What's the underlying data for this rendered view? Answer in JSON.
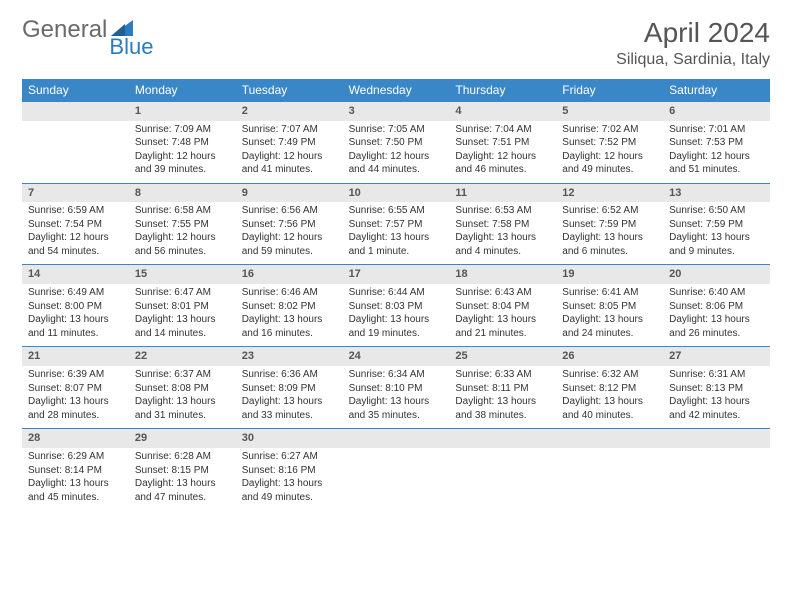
{
  "brand": {
    "part1": "General",
    "part2": "Blue"
  },
  "title": {
    "month": "April 2024",
    "location": "Siliqua, Sardinia, Italy"
  },
  "colors": {
    "header_bg": "#3a87c8",
    "header_text": "#ffffff",
    "date_bg": "#e8e8e8",
    "rule": "#3a87c8",
    "text": "#333333",
    "logo_gray": "#6a6a6a",
    "logo_blue": "#2a7bbf"
  },
  "weekdays": [
    "Sunday",
    "Monday",
    "Tuesday",
    "Wednesday",
    "Thursday",
    "Friday",
    "Saturday"
  ],
  "weeks": [
    [
      null,
      {
        "n": "1",
        "sr": "Sunrise: 7:09 AM",
        "ss": "Sunset: 7:48 PM",
        "d1": "Daylight: 12 hours",
        "d2": "and 39 minutes."
      },
      {
        "n": "2",
        "sr": "Sunrise: 7:07 AM",
        "ss": "Sunset: 7:49 PM",
        "d1": "Daylight: 12 hours",
        "d2": "and 41 minutes."
      },
      {
        "n": "3",
        "sr": "Sunrise: 7:05 AM",
        "ss": "Sunset: 7:50 PM",
        "d1": "Daylight: 12 hours",
        "d2": "and 44 minutes."
      },
      {
        "n": "4",
        "sr": "Sunrise: 7:04 AM",
        "ss": "Sunset: 7:51 PM",
        "d1": "Daylight: 12 hours",
        "d2": "and 46 minutes."
      },
      {
        "n": "5",
        "sr": "Sunrise: 7:02 AM",
        "ss": "Sunset: 7:52 PM",
        "d1": "Daylight: 12 hours",
        "d2": "and 49 minutes."
      },
      {
        "n": "6",
        "sr": "Sunrise: 7:01 AM",
        "ss": "Sunset: 7:53 PM",
        "d1": "Daylight: 12 hours",
        "d2": "and 51 minutes."
      }
    ],
    [
      {
        "n": "7",
        "sr": "Sunrise: 6:59 AM",
        "ss": "Sunset: 7:54 PM",
        "d1": "Daylight: 12 hours",
        "d2": "and 54 minutes."
      },
      {
        "n": "8",
        "sr": "Sunrise: 6:58 AM",
        "ss": "Sunset: 7:55 PM",
        "d1": "Daylight: 12 hours",
        "d2": "and 56 minutes."
      },
      {
        "n": "9",
        "sr": "Sunrise: 6:56 AM",
        "ss": "Sunset: 7:56 PM",
        "d1": "Daylight: 12 hours",
        "d2": "and 59 minutes."
      },
      {
        "n": "10",
        "sr": "Sunrise: 6:55 AM",
        "ss": "Sunset: 7:57 PM",
        "d1": "Daylight: 13 hours",
        "d2": "and 1 minute."
      },
      {
        "n": "11",
        "sr": "Sunrise: 6:53 AM",
        "ss": "Sunset: 7:58 PM",
        "d1": "Daylight: 13 hours",
        "d2": "and 4 minutes."
      },
      {
        "n": "12",
        "sr": "Sunrise: 6:52 AM",
        "ss": "Sunset: 7:59 PM",
        "d1": "Daylight: 13 hours",
        "d2": "and 6 minutes."
      },
      {
        "n": "13",
        "sr": "Sunrise: 6:50 AM",
        "ss": "Sunset: 7:59 PM",
        "d1": "Daylight: 13 hours",
        "d2": "and 9 minutes."
      }
    ],
    [
      {
        "n": "14",
        "sr": "Sunrise: 6:49 AM",
        "ss": "Sunset: 8:00 PM",
        "d1": "Daylight: 13 hours",
        "d2": "and 11 minutes."
      },
      {
        "n": "15",
        "sr": "Sunrise: 6:47 AM",
        "ss": "Sunset: 8:01 PM",
        "d1": "Daylight: 13 hours",
        "d2": "and 14 minutes."
      },
      {
        "n": "16",
        "sr": "Sunrise: 6:46 AM",
        "ss": "Sunset: 8:02 PM",
        "d1": "Daylight: 13 hours",
        "d2": "and 16 minutes."
      },
      {
        "n": "17",
        "sr": "Sunrise: 6:44 AM",
        "ss": "Sunset: 8:03 PM",
        "d1": "Daylight: 13 hours",
        "d2": "and 19 minutes."
      },
      {
        "n": "18",
        "sr": "Sunrise: 6:43 AM",
        "ss": "Sunset: 8:04 PM",
        "d1": "Daylight: 13 hours",
        "d2": "and 21 minutes."
      },
      {
        "n": "19",
        "sr": "Sunrise: 6:41 AM",
        "ss": "Sunset: 8:05 PM",
        "d1": "Daylight: 13 hours",
        "d2": "and 24 minutes."
      },
      {
        "n": "20",
        "sr": "Sunrise: 6:40 AM",
        "ss": "Sunset: 8:06 PM",
        "d1": "Daylight: 13 hours",
        "d2": "and 26 minutes."
      }
    ],
    [
      {
        "n": "21",
        "sr": "Sunrise: 6:39 AM",
        "ss": "Sunset: 8:07 PM",
        "d1": "Daylight: 13 hours",
        "d2": "and 28 minutes."
      },
      {
        "n": "22",
        "sr": "Sunrise: 6:37 AM",
        "ss": "Sunset: 8:08 PM",
        "d1": "Daylight: 13 hours",
        "d2": "and 31 minutes."
      },
      {
        "n": "23",
        "sr": "Sunrise: 6:36 AM",
        "ss": "Sunset: 8:09 PM",
        "d1": "Daylight: 13 hours",
        "d2": "and 33 minutes."
      },
      {
        "n": "24",
        "sr": "Sunrise: 6:34 AM",
        "ss": "Sunset: 8:10 PM",
        "d1": "Daylight: 13 hours",
        "d2": "and 35 minutes."
      },
      {
        "n": "25",
        "sr": "Sunrise: 6:33 AM",
        "ss": "Sunset: 8:11 PM",
        "d1": "Daylight: 13 hours",
        "d2": "and 38 minutes."
      },
      {
        "n": "26",
        "sr": "Sunrise: 6:32 AM",
        "ss": "Sunset: 8:12 PM",
        "d1": "Daylight: 13 hours",
        "d2": "and 40 minutes."
      },
      {
        "n": "27",
        "sr": "Sunrise: 6:31 AM",
        "ss": "Sunset: 8:13 PM",
        "d1": "Daylight: 13 hours",
        "d2": "and 42 minutes."
      }
    ],
    [
      {
        "n": "28",
        "sr": "Sunrise: 6:29 AM",
        "ss": "Sunset: 8:14 PM",
        "d1": "Daylight: 13 hours",
        "d2": "and 45 minutes."
      },
      {
        "n": "29",
        "sr": "Sunrise: 6:28 AM",
        "ss": "Sunset: 8:15 PM",
        "d1": "Daylight: 13 hours",
        "d2": "and 47 minutes."
      },
      {
        "n": "30",
        "sr": "Sunrise: 6:27 AM",
        "ss": "Sunset: 8:16 PM",
        "d1": "Daylight: 13 hours",
        "d2": "and 49 minutes."
      },
      null,
      null,
      null,
      null
    ]
  ]
}
